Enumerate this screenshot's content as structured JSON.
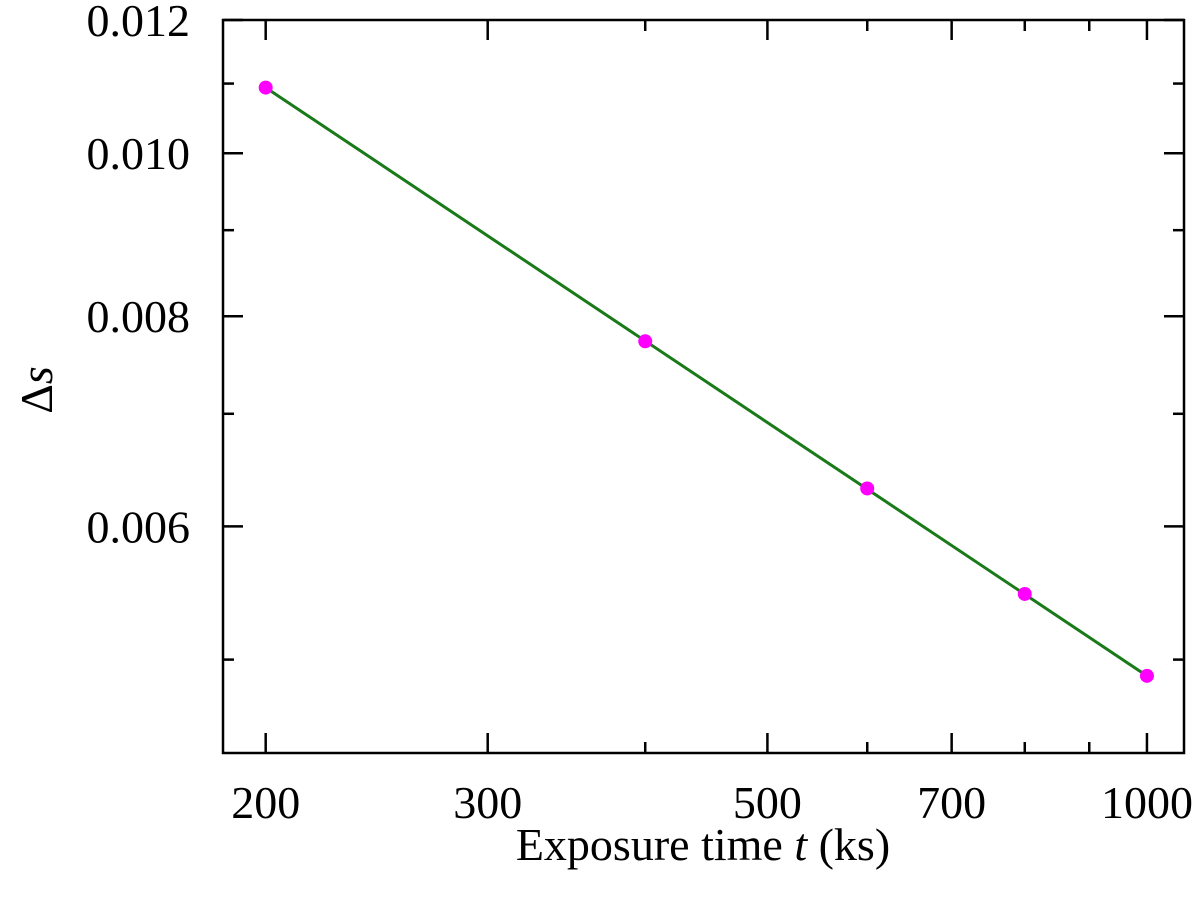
{
  "chart_data": {
    "type": "line",
    "title": "",
    "xlabel": {
      "prefix": "Exposure time ",
      "variable": "t",
      "suffix": " (ks)"
    },
    "ylabel": {
      "symbol": "Δ",
      "variable": "s"
    },
    "x_scale": "log",
    "y_scale": "log",
    "xlim": [
      185,
      1070
    ],
    "ylim": [
      0.0044,
      0.012
    ],
    "x_ticks_major": [
      200,
      300,
      500,
      700,
      1000
    ],
    "x_tick_labels": [
      "200",
      "300",
      "500",
      "700",
      "1000"
    ],
    "x_ticks_minor": [
      400,
      600,
      800,
      900
    ],
    "y_ticks_major": [
      0.006,
      0.008,
      0.01,
      0.012
    ],
    "y_tick_labels": [
      "0.006",
      "0.008",
      "0.010",
      "0.012"
    ],
    "y_ticks_minor": [
      0.005,
      0.007,
      0.009,
      0.011
    ],
    "grid": false,
    "series": [
      {
        "kind": "line",
        "color": "#1a7a1a",
        "x": [
          200,
          1000
        ],
        "y": [
          0.01094,
          0.00489
        ]
      },
      {
        "kind": "scatter",
        "color": "#ff00ff",
        "x": [
          200,
          400,
          600,
          800,
          1000
        ],
        "y": [
          0.01094,
          0.00773,
          0.00632,
          0.00547,
          0.00489
        ]
      }
    ]
  }
}
